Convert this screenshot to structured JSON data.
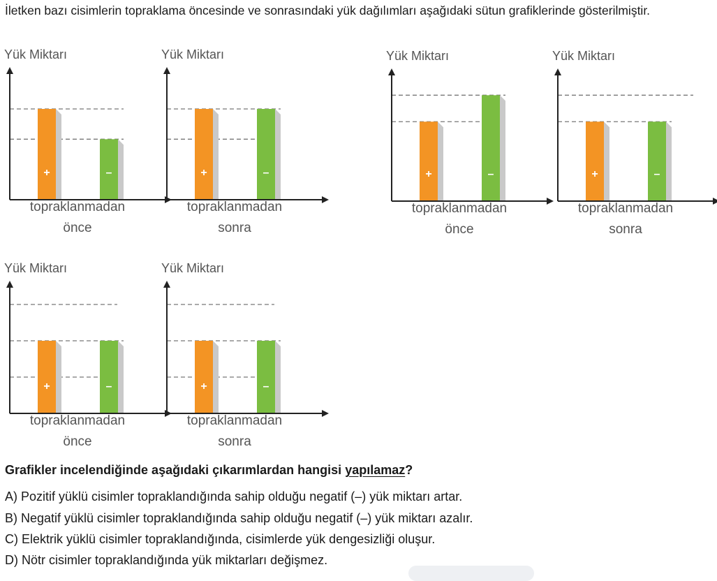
{
  "intro": "İletken bazı cisimlerin topraklama öncesinde ve sonrasındaki yük dağılımları aşağıdaki sütun grafiklerinde gösterilmiştir.",
  "colors": {
    "positive": "#f39424",
    "negative": "#7bbd41",
    "shadow": "#c9c9c9",
    "axis": "#222222",
    "dash": "#777777"
  },
  "chart_data": [
    {
      "type": "bar",
      "group": 1,
      "ylabel": "Yük Miktarı",
      "xlabel_line1": "topraklanmadan",
      "xlabel_line2": "önce",
      "categories": [
        "+",
        "–"
      ],
      "values": [
        3,
        2
      ],
      "reference_lines": [
        3,
        2
      ],
      "ylim": [
        0,
        4.2
      ]
    },
    {
      "type": "bar",
      "group": 1,
      "ylabel": "Yük Miktarı",
      "xlabel_line1": "topraklanmadan",
      "xlabel_line2": "sonra",
      "categories": [
        "+",
        "–"
      ],
      "values": [
        3,
        3
      ],
      "reference_lines": [
        3,
        2
      ],
      "ylim": [
        0,
        4.2
      ]
    },
    {
      "type": "bar",
      "group": 2,
      "ylabel": "Yük Miktarı",
      "xlabel_line1": "topraklanmadan",
      "xlabel_line2": "önce",
      "categories": [
        "+",
        "–"
      ],
      "values": [
        3,
        4
      ],
      "reference_lines": [
        4,
        3
      ],
      "ylim": [
        0,
        4.8
      ]
    },
    {
      "type": "bar",
      "group": 2,
      "ylabel": "Yük Miktarı",
      "xlabel_line1": "topraklanmadan",
      "xlabel_line2": "sonra",
      "categories": [
        "+",
        "–"
      ],
      "values": [
        3,
        3
      ],
      "reference_lines": [
        4,
        3
      ],
      "ylim": [
        0,
        4.8
      ]
    },
    {
      "type": "bar",
      "group": 3,
      "ylabel": "Yük Miktarı",
      "xlabel_line1": "topraklanmadan",
      "xlabel_line2": "önce",
      "categories": [
        "+",
        "–"
      ],
      "values": [
        2,
        2
      ],
      "reference_lines": [
        3,
        2,
        1
      ],
      "ylim": [
        0,
        3.5
      ]
    },
    {
      "type": "bar",
      "group": 3,
      "ylabel": "Yük Miktarı",
      "xlabel_line1": "topraklanmadan",
      "xlabel_line2": "sonra",
      "categories": [
        "+",
        "–"
      ],
      "values": [
        2,
        2
      ],
      "reference_lines": [
        3,
        2,
        1
      ],
      "ylim": [
        0,
        3.5
      ]
    }
  ],
  "question_prefix": "Grafikler incelendiğinde aşağıdaki çıkarımlardan hangisi ",
  "question_emph": "yapılamaz",
  "question_suffix": "?",
  "options": [
    "A) Pozitif yüklü cisimler topraklandığında sahip olduğu negatif (–) yük miktarı artar.",
    "B) Negatif yüklü cisimler topraklandığında sahip olduğu negatif (–) yük miktarı azalır.",
    "C) Elektrik yüklü cisimler topraklandığında, cisimlerde yük dengesizliği oluşur.",
    "D) Nötr cisimler topraklandığında yük miktarları değişmez."
  ]
}
